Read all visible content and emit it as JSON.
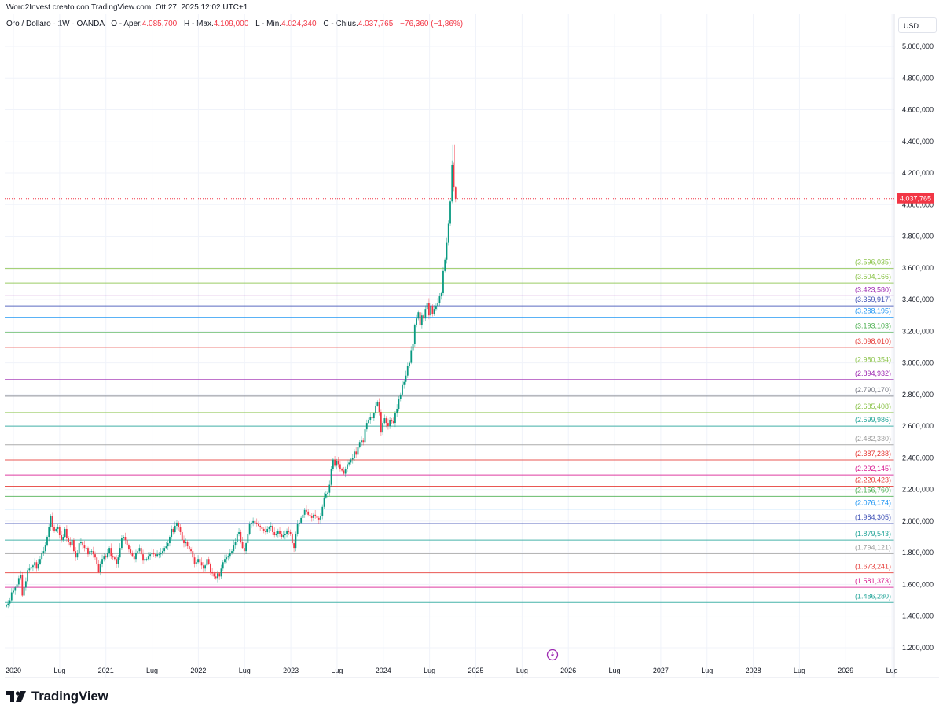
{
  "header": {
    "attribution": "Word2Invest creato con TradingView.com, Ott 27, 2025 12:02 UTC+1",
    "symbol": "Oro / Dollaro · 1W · OANDA",
    "open_label": "O - Aper.",
    "open": "4.085,700",
    "high_label": "H - Max.",
    "high": "4.109,000",
    "low_label": "L - Min.",
    "low": "4.024,340",
    "close_label": "C - Chius.",
    "close": "4.037,765",
    "change": "−76,360 (−1,86%)"
  },
  "price_axis": {
    "currency": "USD",
    "ticks": [
      "5.000,000",
      "4.800,000",
      "4.600,000",
      "4.400,000",
      "4.200,000",
      "4.000,000",
      "3.800,000",
      "3.600,000",
      "3.400,000",
      "3.200,000",
      "3.000,000",
      "2.800,000",
      "2.600,000",
      "2.400,000",
      "2.200,000",
      "2.000,000",
      "1.800,000",
      "1.600,000",
      "1.400,000",
      "1.200,000"
    ],
    "last_price_label": "4.037,765"
  },
  "time_axis": {
    "labels": [
      "2020",
      "Lug",
      "2021",
      "Lug",
      "2022",
      "Lug",
      "2023",
      "Lug",
      "2024",
      "Lug",
      "2025",
      "Lug",
      "2026",
      "Lug",
      "2027",
      "Lug",
      "2028",
      "Lug",
      "2029",
      "Lug"
    ]
  },
  "branding": {
    "logo": "TradingView",
    "logo_icon": "tradingview-logo-icon"
  },
  "event_marker": {
    "icon": "lightning-icon",
    "color": "#9c27b0"
  },
  "colors": {
    "up": "#089981",
    "down": "#f23645",
    "grid": "#f0f3fa",
    "last_price": "#f23645"
  },
  "chart_data": {
    "type": "candlestick",
    "title": "Oro / Dollaro · 1W · OANDA",
    "xlabel": "",
    "ylabel": "USD",
    "ylim": [
      1200,
      5000
    ],
    "x_range": [
      "2020-01",
      "2029-12"
    ],
    "grid": true,
    "last_price": 4037.765,
    "ohlc_last": {
      "open": 4085.7,
      "high": 4109.0,
      "low": 4024.34,
      "close": 4037.765,
      "change": -76.36,
      "change_pct": -1.86
    },
    "horizontal_levels": [
      {
        "value": 3596.035,
        "label": "(3.596,035)",
        "color": "#8bc34a"
      },
      {
        "value": 3504.166,
        "label": "(3.504,166)",
        "color": "#8bc34a"
      },
      {
        "value": 3423.58,
        "label": "(3.423,580)",
        "color": "#9c27b0"
      },
      {
        "value": 3359.917,
        "label": "(3.359,917)",
        "color": "#3f51b5"
      },
      {
        "value": 3288.195,
        "label": "(3.288,195)",
        "color": "#2196f3"
      },
      {
        "value": 3193.103,
        "label": "(3.193,103)",
        "color": "#4caf50"
      },
      {
        "value": 3098.01,
        "label": "(3.098,010)",
        "color": "#e53935"
      },
      {
        "value": 2980.354,
        "label": "(2.980,354)",
        "color": "#8bc34a"
      },
      {
        "value": 2894.932,
        "label": "(2.894,932)",
        "color": "#9c27b0"
      },
      {
        "value": 2790.17,
        "label": "(2.790,170)",
        "color": "#787b86"
      },
      {
        "value": 2685.408,
        "label": "(2.685,408)",
        "color": "#8bc34a"
      },
      {
        "value": 2599.986,
        "label": "(2.599,986)",
        "color": "#26a69a"
      },
      {
        "value": 2482.33,
        "label": "(2.482,330)",
        "color": "#9e9e9e"
      },
      {
        "value": 2387.238,
        "label": "(2.387,238)",
        "color": "#e53935"
      },
      {
        "value": 2292.145,
        "label": "(2.292,145)",
        "color": "#d81b90"
      },
      {
        "value": 2220.423,
        "label": "(2.220,423)",
        "color": "#e53935"
      },
      {
        "value": 2156.76,
        "label": "(2.156,760)",
        "color": "#4caf50"
      },
      {
        "value": 2076.174,
        "label": "(2.076,174)",
        "color": "#2196f3"
      },
      {
        "value": 1984.305,
        "label": "(1.984,305)",
        "color": "#3f51b5"
      },
      {
        "value": 1879.543,
        "label": "(1.879,543)",
        "color": "#26a69a"
      },
      {
        "value": 1794.121,
        "label": "(1.794,121)",
        "color": "#9e9e9e"
      },
      {
        "value": 1673.241,
        "label": "(1.673,241)",
        "color": "#e53935"
      },
      {
        "value": 1581.373,
        "label": "(1.581,373)",
        "color": "#d81b90"
      },
      {
        "value": 1486.28,
        "label": "(1.486,280)",
        "color": "#26a69a"
      }
    ],
    "weekly_close_approx": [
      1470,
      1480,
      1500,
      1550,
      1560,
      1580,
      1600,
      1640,
      1660,
      1530,
      1580,
      1620,
      1690,
      1700,
      1710,
      1720,
      1740,
      1700,
      1730,
      1760,
      1800,
      1810,
      1850,
      1900,
      1960,
      2030,
      1960,
      1940,
      1950,
      1960,
      1910,
      1880,
      1900,
      1950,
      1890,
      1870,
      1850,
      1880,
      1810,
      1770,
      1800,
      1860,
      1870,
      1850,
      1830,
      1830,
      1790,
      1810,
      1810,
      1790,
      1770,
      1730,
      1680,
      1730,
      1760,
      1780,
      1770,
      1800,
      1830,
      1780,
      1770,
      1760,
      1730,
      1770,
      1830,
      1890,
      1900,
      1880,
      1850,
      1820,
      1800,
      1780,
      1760,
      1800,
      1810,
      1830,
      1790,
      1750,
      1760,
      1760,
      1780,
      1790,
      1800,
      1790,
      1780,
      1790,
      1790,
      1800,
      1810,
      1830,
      1840,
      1860,
      1900,
      1950,
      1930,
      1970,
      1990,
      1960,
      1930,
      1880,
      1860,
      1870,
      1840,
      1820,
      1810,
      1770,
      1730,
      1740,
      1760,
      1740,
      1720,
      1700,
      1720,
      1760,
      1730,
      1680,
      1670,
      1650,
      1640,
      1670,
      1650,
      1700,
      1740,
      1760,
      1770,
      1780,
      1800,
      1810,
      1850,
      1870,
      1920,
      1930,
      1870,
      1830,
      1810,
      1860,
      1920,
      1980,
      1990,
      2000,
      1990,
      1980,
      1970,
      1960,
      1950,
      1940,
      1930,
      1950,
      1960,
      1970,
      1930,
      1910,
      1920,
      1940,
      1920,
      1900,
      1910,
      1920,
      1940,
      1930,
      1920,
      1860,
      1830,
      1920,
      1980,
      1990,
      2020,
      2040,
      2070,
      2060,
      2040,
      2030,
      2020,
      2040,
      2030,
      2020,
      2010,
      2030,
      2090,
      2150,
      2170,
      2180,
      2230,
      2330,
      2390,
      2350,
      2380,
      2360,
      2330,
      2320,
      2300,
      2330,
      2360,
      2370,
      2390,
      2400,
      2440,
      2420,
      2470,
      2500,
      2510,
      2500,
      2580,
      2620,
      2640,
      2660,
      2650,
      2680,
      2730,
      2750,
      2690,
      2560,
      2620,
      2650,
      2620,
      2600,
      2640,
      2630,
      2620,
      2680,
      2710,
      2770,
      2800,
      2860,
      2880,
      2920,
      2980,
      3000,
      3080,
      3120,
      3240,
      3280,
      3320,
      3240,
      3300,
      3280,
      3340,
      3380,
      3300,
      3360,
      3310,
      3340,
      3360,
      3380,
      3420,
      3440,
      3580,
      3650,
      3760,
      3880,
      4020,
      4250,
      4110,
      4037
    ]
  }
}
